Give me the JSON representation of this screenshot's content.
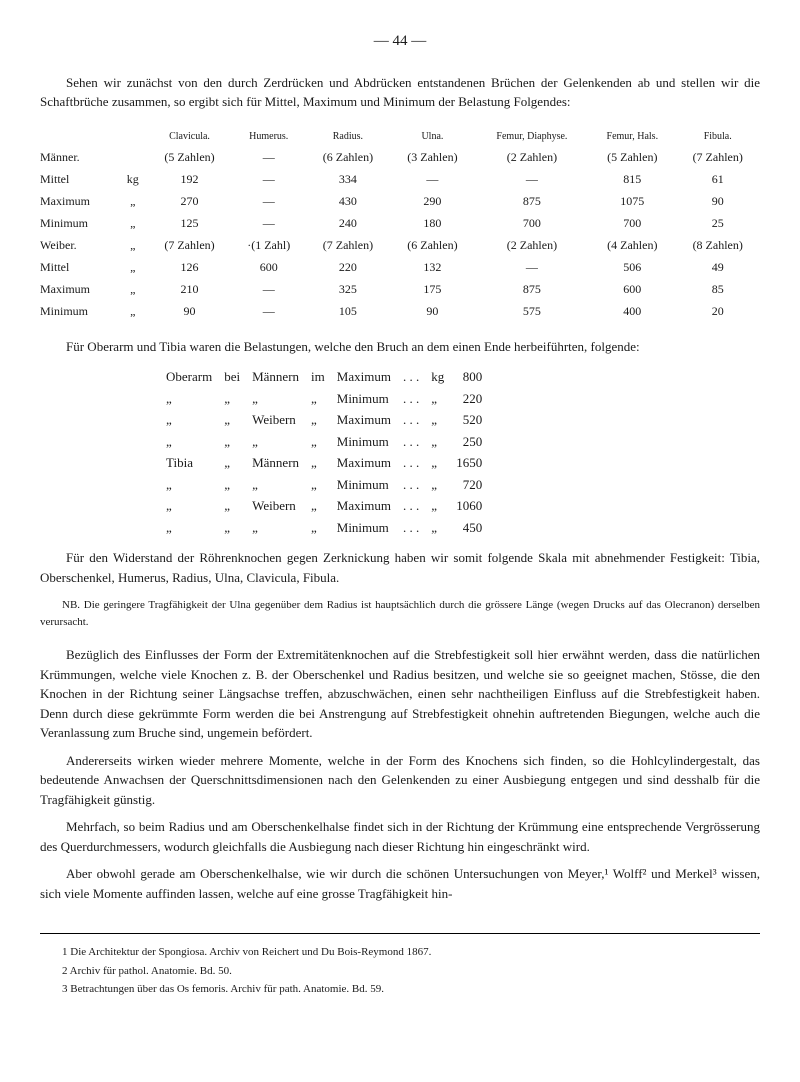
{
  "page_number": "— 44 —",
  "intro": "Sehen wir zunächst von den durch Zerdrücken und Abdrücken entstandenen Brüchen der Gelenkenden ab und stellen wir die Schaftbrüche zusammen, so ergibt sich für Mittel, Maximum und Minimum der Belastung Folgendes:",
  "table1": {
    "headers": [
      "",
      "",
      "Clavicula.",
      "Humerus.",
      "Radius.",
      "Ulna.",
      "Femur, Diaphyse.",
      "Femur, Hals.",
      "Fibula."
    ],
    "rows": [
      [
        "Männer.",
        "",
        "(5 Zahlen)",
        "—",
        "(6 Zahlen)",
        "(3 Zahlen)",
        "(2 Zahlen)",
        "(5 Zahlen)",
        "(7 Zahlen)"
      ],
      [
        "Mittel",
        "kg",
        "192",
        "—",
        "334",
        "—",
        "—",
        "815",
        "61"
      ],
      [
        "Maximum",
        "„",
        "270",
        "—",
        "430",
        "290",
        "875",
        "1075",
        "90"
      ],
      [
        "Minimum",
        "„",
        "125",
        "—",
        "240",
        "180",
        "700",
        "700",
        "25"
      ],
      [
        "Weiber.",
        "„",
        "(7 Zahlen)",
        "·(1 Zahl)",
        "(7 Zahlen)",
        "(6 Zahlen)",
        "(2 Zahlen)",
        "(4 Zahlen)",
        "(8 Zahlen)"
      ],
      [
        "Mittel",
        "„",
        "126",
        "600",
        "220",
        "132",
        "—",
        "506",
        "49"
      ],
      [
        "Maximum",
        "„",
        "210",
        "—",
        "325",
        "175",
        "875",
        "600",
        "85"
      ],
      [
        "Minimum",
        "„",
        "90",
        "—",
        "105",
        "90",
        "575",
        "400",
        "20"
      ]
    ]
  },
  "mid1": "Für Oberarm und Tibia waren die Belastungen, welche den Bruch an dem einen Ende herbeiführten, folgende:",
  "list": [
    [
      "Oberarm",
      "bei",
      "Männern",
      "im",
      "Maximum",
      ". . .",
      "kg",
      "800"
    ],
    [
      "„",
      "„",
      "„",
      "„",
      "Minimum",
      ". . .",
      "„",
      "220"
    ],
    [
      "„",
      "„",
      "Weibern",
      "„",
      "Maximum",
      ". . .",
      "„",
      "520"
    ],
    [
      "„",
      "„",
      "„",
      "„",
      "Minimum",
      ". . .",
      "„",
      "250"
    ],
    [
      "Tibia",
      "„",
      "Männern",
      "„",
      "Maximum",
      ". . .",
      "„",
      "1650"
    ],
    [
      "„",
      "„",
      "„",
      "„",
      "Minimum",
      ". . .",
      "„",
      "720"
    ],
    [
      "„",
      "„",
      "Weibern",
      "„",
      "Maximum",
      ". . .",
      "„",
      "1060"
    ],
    [
      "„",
      "„",
      "„",
      "„",
      "Minimum",
      ". . .",
      "„",
      "450"
    ]
  ],
  "mid2": "Für den Widerstand der Röhrenknochen gegen Zerknickung haben wir somit folgende Skala mit abnehmender Festigkeit: Tibia, Oberschenkel, Humerus, Radius, Ulna, Clavicula, Fibula.",
  "note": "NB. Die geringere Tragfähigkeit der Ulna gegenüber dem Radius ist hauptsächlich durch die grössere Länge (wegen Drucks auf das Olecranon) derselben verursacht.",
  "p1": "Bezüglich des Einflusses der Form der Extremitätenknochen auf die Strebfestigkeit soll hier erwähnt werden, dass die natürlichen Krümmungen, welche viele Knochen z. B. der Oberschenkel und Radius besitzen, und welche sie so geeignet machen, Stösse, die den Knochen in der Richtung seiner Längsachse treffen, abzuschwächen, einen sehr nachtheiligen Einfluss auf die Strebfestigkeit haben. Denn durch diese gekrümmte Form werden die bei Anstrengung auf Strebfestigkeit ohnehin auftretenden Biegungen, welche auch die Veranlassung zum Bruche sind, ungemein befördert.",
  "p2": "Andererseits wirken wieder mehrere Momente, welche in der Form des Knochens sich finden, so die Hohlcylindergestalt, das bedeutende Anwachsen der Querschnittsdimensionen nach den Gelenkenden zu einer Ausbiegung entgegen und sind desshalb für die Tragfähigkeit günstig.",
  "p3": "Mehrfach, so beim Radius und am Oberschenkelhalse findet sich in der Richtung der Krümmung eine entsprechende Vergrösserung des Querdurchmessers, wodurch gleichfalls die Ausbiegung nach dieser Richtung hin eingeschränkt wird.",
  "p4": "Aber obwohl gerade am Oberschenkelhalse, wie wir durch die schönen Untersuchungen von Meyer,¹ Wolff² und Merkel³ wissen, sich viele Momente auffinden lassen, welche auf eine grosse Tragfähigkeit hin-",
  "footnotes": [
    "1 Die Architektur der Spongiosa. Archiv von Reichert und Du Bois-Reymond 1867.",
    "2 Archiv für pathol. Anatomie. Bd. 50.",
    "3 Betrachtungen über das Os femoris. Archiv für path. Anatomie. Bd. 59."
  ]
}
